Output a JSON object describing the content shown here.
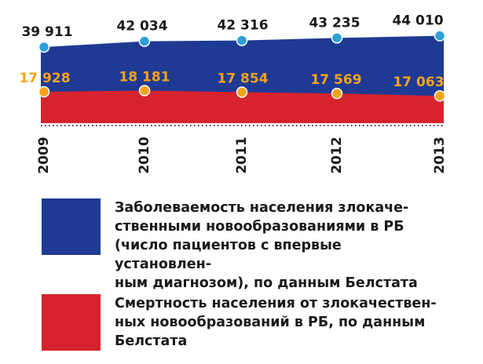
{
  "chart_data": {
    "type": "area",
    "categories": [
      "2009",
      "2010",
      "2011",
      "2012",
      "2013"
    ],
    "series": [
      {
        "name": "Заболеваемость населения злокаче-\nственными новообразованиями в РБ\n(число пациентов с впервые установлен-\nным диагнозом), по данным Белстата",
        "values": [
          39911,
          42034,
          42316,
          43235,
          44010
        ],
        "labels": [
          "39 911",
          "42 034",
          "42 316",
          "43 235",
          "44 010"
        ],
        "color": "#1f3a93",
        "point_color": "#2f9fd8",
        "label_color": "#1a1a1a"
      },
      {
        "name": "Смертность населения от злокачествен-\nных новообразований в РБ, по данным\nБелстата",
        "values": [
          17928,
          18181,
          17854,
          17569,
          17063
        ],
        "labels": [
          "17 928",
          "18 181",
          "17 854",
          "17 569",
          "17 063"
        ],
        "color": "#d7232e",
        "point_color": "#f5a31a",
        "label_color": "#f5a31a"
      }
    ],
    "title": "",
    "xlabel": "",
    "ylabel": "",
    "grid": false,
    "legend_position": "bottom"
  }
}
